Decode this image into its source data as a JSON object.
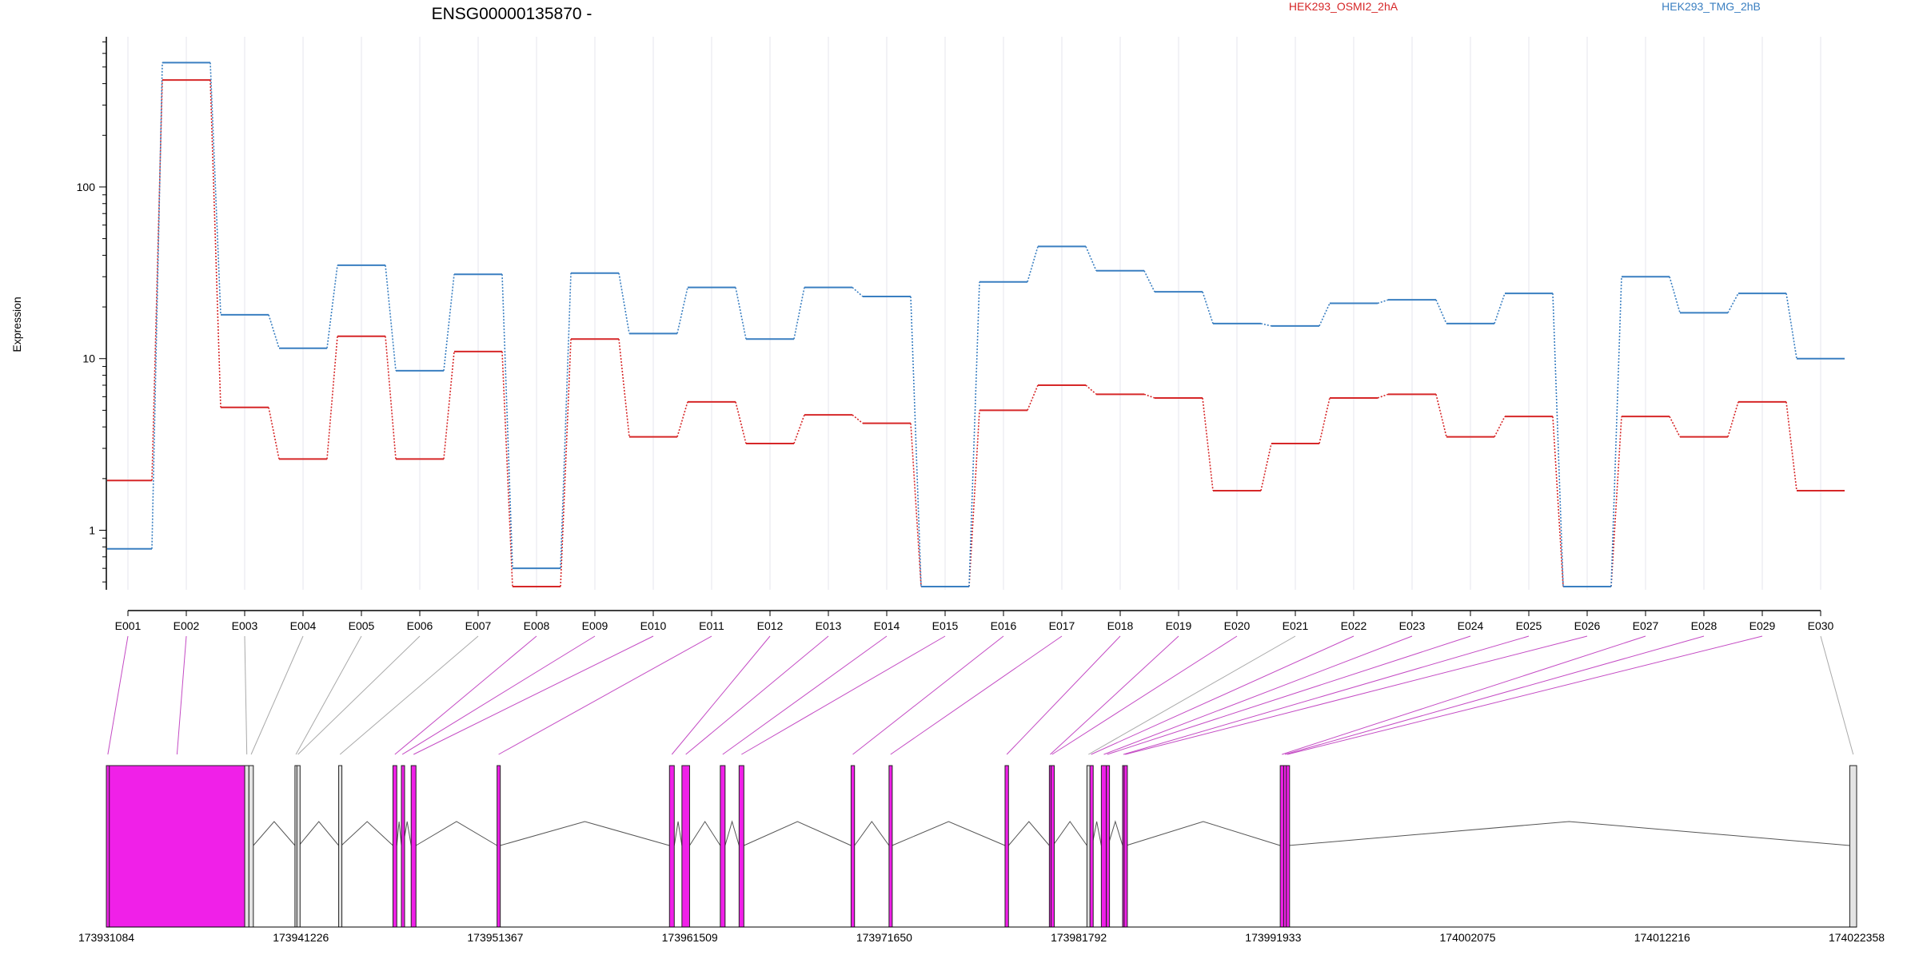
{
  "chart_data": {
    "type": "line",
    "title": "ENSG00000135870 -",
    "ylabel": "Expression",
    "xlabel": "",
    "y_scale": "log",
    "ylim": [
      0.45,
      750
    ],
    "y_ticks": [
      1,
      10,
      100
    ],
    "y_tick_labels": [
      "1",
      "10",
      "100"
    ],
    "grid": "vertical",
    "legend_placement": "top",
    "categories": [
      "E001",
      "E002",
      "E003",
      "E004",
      "E005",
      "E006",
      "E007",
      "E008",
      "E009",
      "E010",
      "E011",
      "E012",
      "E013",
      "E014",
      "E015",
      "E016",
      "E017",
      "E018",
      "E019",
      "E020",
      "E021",
      "E022",
      "E023",
      "E024",
      "E025",
      "E026",
      "E027",
      "E028",
      "E029",
      "E030"
    ],
    "series": [
      {
        "name": "HEK293_OSMI2_2hA",
        "color": "#d62728",
        "values": [
          1.95,
          420,
          5.2,
          2.6,
          13.5,
          2.6,
          11.0,
          0.47,
          13.0,
          3.5,
          5.6,
          3.2,
          4.7,
          4.2,
          0.47,
          5.0,
          7.0,
          6.2,
          5.9,
          1.7,
          3.2,
          5.9,
          6.2,
          3.5,
          4.6,
          0.47,
          4.6,
          3.5,
          5.6,
          1.7
        ]
      },
      {
        "name": "HEK293_TMG_2hB",
        "color": "#3a7fc1",
        "values": [
          0.78,
          530,
          18.0,
          11.5,
          35.0,
          8.5,
          31.0,
          0.6,
          31.5,
          14.0,
          26.0,
          13.0,
          26.0,
          23.0,
          0.47,
          28.0,
          45.0,
          32.5,
          24.5,
          16.0,
          15.5,
          21.0,
          22.0,
          16.0,
          24.0,
          0.47,
          30.0,
          18.5,
          24.0,
          10.0
        ]
      }
    ],
    "gene_model": {
      "coord_range": [
        173931084,
        174022358
      ],
      "coord_ticks": [
        173931084,
        173941226,
        173951367,
        173961509,
        173971650,
        173981792,
        173991933,
        174002075,
        174012216,
        174022358
      ],
      "coord_tick_labels": [
        "173931084",
        "173941226",
        "173951367",
        "173961509",
        "173971650",
        "173981792",
        "173991933",
        "174002075",
        "174012216",
        "174022358"
      ],
      "highlight_color": "#f020e8",
      "plain_color": "#e4e4e4",
      "exons": [
        {
          "id": "E001",
          "start": 173931084,
          "end": 173931240,
          "highlight": true
        },
        {
          "id": "E002",
          "start": 173931240,
          "end": 173938300,
          "highlight": true
        },
        {
          "id": "E003",
          "start": 173938300,
          "end": 173938520,
          "highlight": false
        },
        {
          "id": "E004",
          "start": 173938520,
          "end": 173938750,
          "highlight": false
        },
        {
          "id": "E005",
          "start": 173940920,
          "end": 173941020,
          "highlight": false
        },
        {
          "id": "E006",
          "start": 173941020,
          "end": 173941130,
          "highlight": false
        },
        {
          "id": "E007",
          "start": 173943200,
          "end": 173943340,
          "highlight": false
        },
        {
          "id": "E008",
          "start": 173946030,
          "end": 173946230,
          "highlight": true
        },
        {
          "id": "E009",
          "start": 173946470,
          "end": 173946560,
          "highlight": true
        },
        {
          "id": "E010",
          "start": 173946980,
          "end": 173947230,
          "highlight": true
        },
        {
          "id": "E011",
          "start": 173951460,
          "end": 173951620,
          "highlight": true
        },
        {
          "id": "E012",
          "start": 173960450,
          "end": 173960700,
          "highlight": true
        },
        {
          "id": "E013",
          "start": 173961100,
          "end": 173961500,
          "highlight": true
        },
        {
          "id": "E014",
          "start": 173963100,
          "end": 173963350,
          "highlight": true
        },
        {
          "id": "E015",
          "start": 173964080,
          "end": 173964330,
          "highlight": true
        },
        {
          "id": "E016",
          "start": 173969920,
          "end": 173970100,
          "highlight": true
        },
        {
          "id": "E017",
          "start": 173971900,
          "end": 173972060,
          "highlight": true
        },
        {
          "id": "E018",
          "start": 173977950,
          "end": 173978130,
          "highlight": true
        },
        {
          "id": "E019",
          "start": 173980260,
          "end": 173980350,
          "highlight": true
        },
        {
          "id": "E020",
          "start": 173980350,
          "end": 173980450,
          "highlight": true
        },
        {
          "id": "E021",
          "start": 173982220,
          "end": 173982380,
          "highlight": false
        },
        {
          "id": "E022",
          "start": 173982380,
          "end": 173982490,
          "highlight": true
        },
        {
          "id": "E023",
          "start": 173982970,
          "end": 173983230,
          "highlight": true
        },
        {
          "id": "E024",
          "start": 173983230,
          "end": 173983320,
          "highlight": true
        },
        {
          "id": "E025",
          "start": 173984080,
          "end": 173984160,
          "highlight": true
        },
        {
          "id": "E026",
          "start": 173984160,
          "end": 173984270,
          "highlight": true
        },
        {
          "id": "E027",
          "start": 173992300,
          "end": 173992480,
          "highlight": true
        },
        {
          "id": "E028",
          "start": 173992480,
          "end": 173992620,
          "highlight": true
        },
        {
          "id": "E029",
          "start": 173992620,
          "end": 173992720,
          "highlight": true
        },
        {
          "id": "E030",
          "start": 174022000,
          "end": 174022358,
          "highlight": false
        }
      ],
      "introns": [
        [
          173938750,
          173940920
        ],
        [
          173941130,
          173943200
        ],
        [
          173943340,
          173946030
        ],
        [
          173946230,
          173946470
        ],
        [
          173946560,
          173946980
        ],
        [
          173947230,
          173951460
        ],
        [
          173951620,
          173960450
        ],
        [
          173960700,
          173961100
        ],
        [
          173961500,
          173963100
        ],
        [
          173963350,
          173964080
        ],
        [
          173964330,
          173969920
        ],
        [
          173970100,
          173971900
        ],
        [
          173972060,
          173977950
        ],
        [
          173978130,
          173980260
        ],
        [
          173980450,
          173982220
        ],
        [
          173982490,
          173982970
        ],
        [
          173983320,
          173984080
        ],
        [
          173984270,
          173992300
        ],
        [
          173992720,
          174022000
        ]
      ]
    }
  }
}
